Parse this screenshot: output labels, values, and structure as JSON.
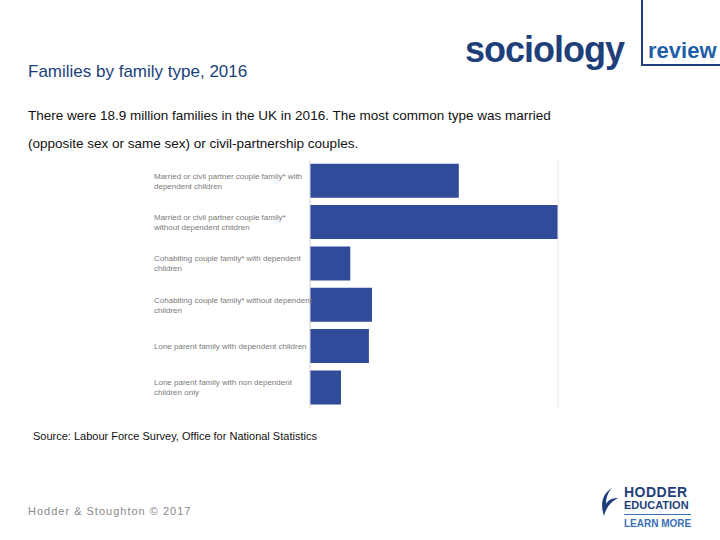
{
  "chart_data": {
    "type": "bar",
    "orientation": "horizontal",
    "title": "Families by family type, 2016",
    "subtitle": "There were 18.9 million families in the UK in 2016. The most common type was married (opposite sex or same sex) or civil-partnership couples.",
    "categories": [
      "Married or civil partner couple family* with dependent children",
      "Married or civil partner couple family* without dependent children",
      "Cohabiting couple family* with dependent children",
      "Cohabiting couple family* without dependent children",
      "Lone parent family with dependent children",
      "Lone parent family with non dependent children only"
    ],
    "values": [
      4.8,
      8.0,
      1.3,
      2.0,
      1.9,
      1.0
    ],
    "color": "#2f4b9a",
    "xlim": [
      0,
      8
    ],
    "grid": false,
    "tick_labels": "y",
    "data_labels": false,
    "annotations": [
      "Source: Labour Force Survey, Office for National Statistics"
    ]
  },
  "slide": {
    "logo": [
      "sociology",
      "review"
    ],
    "publisher_logo": [
      "HODDER",
      "EDUCATION",
      "LEARN MORE"
    ],
    "footer": "Hodder & Stoughton © 2017"
  }
}
